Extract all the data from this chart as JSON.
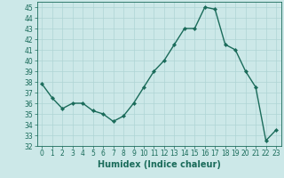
{
  "x": [
    0,
    1,
    2,
    3,
    4,
    5,
    6,
    7,
    8,
    9,
    10,
    11,
    12,
    13,
    14,
    15,
    16,
    17,
    18,
    19,
    20,
    21,
    22,
    23
  ],
  "y": [
    37.8,
    36.5,
    35.5,
    36.0,
    36.0,
    35.3,
    35.0,
    34.3,
    34.8,
    36.0,
    37.5,
    39.0,
    40.0,
    41.5,
    43.0,
    43.0,
    45.0,
    44.8,
    41.5,
    41.0,
    39.0,
    37.5,
    32.5,
    33.5
  ],
  "line_color": "#1a6b5a",
  "marker": "D",
  "marker_size": 2.2,
  "bg_color": "#cce8e8",
  "grid_color": "#afd4d4",
  "xlabel": "Humidex (Indice chaleur)",
  "xlim": [
    -0.5,
    23.5
  ],
  "ylim": [
    32,
    45.5
  ],
  "yticks": [
    32,
    33,
    34,
    35,
    36,
    37,
    38,
    39,
    40,
    41,
    42,
    43,
    44,
    45
  ],
  "xticks": [
    0,
    1,
    2,
    3,
    4,
    5,
    6,
    7,
    8,
    9,
    10,
    11,
    12,
    13,
    14,
    15,
    16,
    17,
    18,
    19,
    20,
    21,
    22,
    23
  ],
  "tick_fontsize": 5.5,
  "xlabel_fontsize": 7.0,
  "linewidth": 1.0
}
